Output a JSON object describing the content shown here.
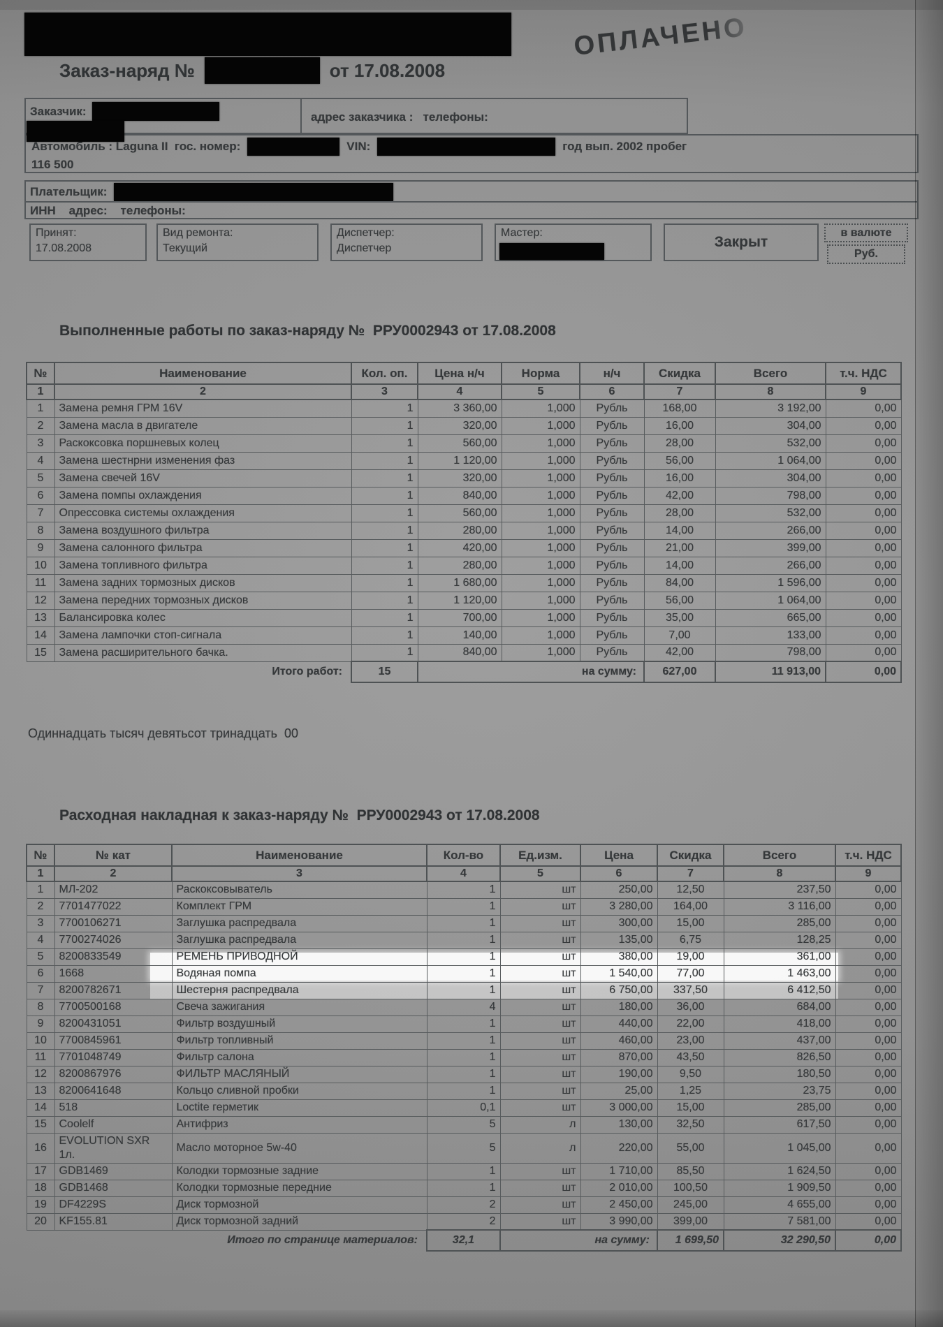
{
  "colors": {
    "paper": "#959595",
    "ink": "#35383a",
    "redaction": "#000000",
    "highlight": "#ffffff"
  },
  "stamp": "ОПЛАЧЕНО",
  "title": {
    "prefix": "Заказ-наряд №",
    "date": "от 17.08.2008"
  },
  "customer": {
    "label": "Заказчик:",
    "address_phones": "адрес заказчика :   телефоны:"
  },
  "vehicle": {
    "line": "Автомобиль : Laguna II  гос. номер:",
    "vin_label": "VIN:",
    "year": "год вып. 2002 пробег",
    "mileage": "116 500"
  },
  "payer": {
    "label": "Плательщик:",
    "inn_line": "ИНН    адрес:    телефоны:"
  },
  "status": {
    "accepted_label": "Принят:",
    "accepted_value": "17.08.2008",
    "repair_type_label": "Вид ремонта:",
    "repair_type_value": "Текущий",
    "dispatcher_label": "Диспетчер:",
    "dispatcher_value": "Диспетчер",
    "master_label": "Мастер:",
    "closed": "Закрыт",
    "currency_label": "в валюте",
    "currency_value": "Руб."
  },
  "works": {
    "title": "Выполненные работы по заказ-наряду №  РРУ0002943 от 17.08.2008",
    "headers": [
      "№",
      "Наименование",
      "Кол. оп.",
      "Цена н/ч",
      "Норма",
      "н/ч",
      "Скидка",
      "Всего",
      "т.ч. НДС"
    ],
    "col_numbers": [
      "1",
      "2",
      "3",
      "4",
      "5",
      "6",
      "7",
      "8",
      "9"
    ],
    "rows": [
      [
        "1",
        "Замена ремня ГРМ 16V",
        "1",
        "3 360,00",
        "1,000",
        "Рубль",
        "168,00",
        "3 192,00",
        "0,00"
      ],
      [
        "2",
        "Замена масла в двигателе",
        "1",
        "320,00",
        "1,000",
        "Рубль",
        "16,00",
        "304,00",
        "0,00"
      ],
      [
        "3",
        "Раскоксовка поршневых колец",
        "1",
        "560,00",
        "1,000",
        "Рубль",
        "28,00",
        "532,00",
        "0,00"
      ],
      [
        "4",
        "Замена шестнрни изменения фаз",
        "1",
        "1 120,00",
        "1,000",
        "Рубль",
        "56,00",
        "1 064,00",
        "0,00"
      ],
      [
        "5",
        "Замена свечей 16V",
        "1",
        "320,00",
        "1,000",
        "Рубль",
        "16,00",
        "304,00",
        "0,00"
      ],
      [
        "6",
        "Замена помпы охлаждения",
        "1",
        "840,00",
        "1,000",
        "Рубль",
        "42,00",
        "798,00",
        "0,00"
      ],
      [
        "7",
        "Опрессовка системы охлаждения",
        "1",
        "560,00",
        "1,000",
        "Рубль",
        "28,00",
        "532,00",
        "0,00"
      ],
      [
        "8",
        "Замена воздушного фильтра",
        "1",
        "280,00",
        "1,000",
        "Рубль",
        "14,00",
        "266,00",
        "0,00"
      ],
      [
        "9",
        "Замена салонного фильтра",
        "1",
        "420,00",
        "1,000",
        "Рубль",
        "21,00",
        "399,00",
        "0,00"
      ],
      [
        "10",
        "Замена топливного фильтра",
        "1",
        "280,00",
        "1,000",
        "Рубль",
        "14,00",
        "266,00",
        "0,00"
      ],
      [
        "11",
        "Замена задних тормозных дисков",
        "1",
        "1 680,00",
        "1,000",
        "Рубль",
        "84,00",
        "1 596,00",
        "0,00"
      ],
      [
        "12",
        "Замена передних тормозных дисков",
        "1",
        "1 120,00",
        "1,000",
        "Рубль",
        "56,00",
        "1 064,00",
        "0,00"
      ],
      [
        "13",
        "Балансировка колес",
        "1",
        "700,00",
        "1,000",
        "Рубль",
        "35,00",
        "665,00",
        "0,00"
      ],
      [
        "14",
        "Замена лампочки стоп-сигнала",
        "1",
        "140,00",
        "1,000",
        "Рубль",
        "7,00",
        "133,00",
        "0,00"
      ],
      [
        "15",
        "Замена расширительного бачка.",
        "1",
        "840,00",
        "1,000",
        "Рубль",
        "42,00",
        "798,00",
        "0,00"
      ]
    ],
    "total": {
      "label": "Итого работ:",
      "count": "15",
      "sum_label": "на сумму:",
      "discount": "627,00",
      "total": "11 913,00",
      "vat": "0,00"
    },
    "amount_in_words": "Одиннадцать тысяч девятьсот тринадцать  00"
  },
  "materials": {
    "title": "Расходная накладная к заказ-наряду №  РРУ0002943 от 17.08.2008",
    "headers": [
      "№",
      "№ кат",
      "Наименование",
      "Кол-во",
      "Ед.изм.",
      "Цена",
      "Скидка",
      "Всего",
      "т.ч. НДС"
    ],
    "col_numbers": [
      "1",
      "2",
      "3",
      "4",
      "5",
      "6",
      "7",
      "8",
      "9"
    ],
    "highlighted_row": 5,
    "rows": [
      [
        "1",
        "МЛ-202",
        "Раскоксовыватель",
        "1",
        "шт",
        "250,00",
        "12,50",
        "237,50",
        "0,00"
      ],
      [
        "2",
        "7701477022",
        "Комплект ГРМ",
        "1",
        "шт",
        "3 280,00",
        "164,00",
        "3 116,00",
        "0,00"
      ],
      [
        "3",
        "7700106271",
        "Заглушка распредвала",
        "1",
        "шт",
        "300,00",
        "15,00",
        "285,00",
        "0,00"
      ],
      [
        "4",
        "7700274026",
        "Заглушка распредвала",
        "1",
        "шт",
        "135,00",
        "6,75",
        "128,25",
        "0,00"
      ],
      [
        "5",
        "8200833549",
        "РЕМЕНЬ ПРИВОДНОЙ",
        "1",
        "шт",
        "380,00",
        "19,00",
        "361,00",
        "0,00"
      ],
      [
        "6",
        "1668",
        "Водяная помпа",
        "1",
        "шт",
        "1 540,00",
        "77,00",
        "1 463,00",
        "0,00"
      ],
      [
        "7",
        "8200782671",
        "Шестерня распредвала",
        "1",
        "шт",
        "6 750,00",
        "337,50",
        "6 412,50",
        "0,00"
      ],
      [
        "8",
        "7700500168",
        "Свеча зажигания",
        "4",
        "шт",
        "180,00",
        "36,00",
        "684,00",
        "0,00"
      ],
      [
        "9",
        "8200431051",
        "Фильтр воздушный",
        "1",
        "шт",
        "440,00",
        "22,00",
        "418,00",
        "0,00"
      ],
      [
        "10",
        "7700845961",
        "Фильтр топливный",
        "1",
        "шт",
        "460,00",
        "23,00",
        "437,00",
        "0,00"
      ],
      [
        "11",
        "7701048749",
        "Фильтр салона",
        "1",
        "шт",
        "870,00",
        "43,50",
        "826,50",
        "0,00"
      ],
      [
        "12",
        "8200867976",
        "ФИЛЬТР МАСЛЯНЫЙ",
        "1",
        "шт",
        "190,00",
        "9,50",
        "180,50",
        "0,00"
      ],
      [
        "13",
        "8200641648",
        "Кольцо сливной пробки",
        "1",
        "шт",
        "25,00",
        "1,25",
        "23,75",
        "0,00"
      ],
      [
        "14",
        "518",
        "Loctite герметик",
        "0,1",
        "шт",
        "3 000,00",
        "15,00",
        "285,00",
        "0,00"
      ],
      [
        "15",
        "Coolelf",
        "Антифриз",
        "5",
        "л",
        "130,00",
        "32,50",
        "617,50",
        "0,00"
      ],
      [
        "16",
        "EVOLUTION SXR 1л.",
        "Масло моторное 5w-40",
        "5",
        "л",
        "220,00",
        "55,00",
        "1 045,00",
        "0,00"
      ],
      [
        "17",
        "GDB1469",
        "Колодки тормозные задние",
        "1",
        "шт",
        "1 710,00",
        "85,50",
        "1 624,50",
        "0,00"
      ],
      [
        "18",
        "GDB1468",
        "Колодки тормозные передние",
        "1",
        "шт",
        "2 010,00",
        "100,50",
        "1 909,50",
        "0,00"
      ],
      [
        "19",
        "DF4229S",
        "Диск тормозной",
        "2",
        "шт",
        "2 450,00",
        "245,00",
        "4 655,00",
        "0,00"
      ],
      [
        "20",
        "KF155.81",
        "Диск тормозной задний",
        "2",
        "шт",
        "3 990,00",
        "399,00",
        "7 581,00",
        "0,00"
      ]
    ],
    "total": {
      "label": "Итого по странице материалов:",
      "qty": "32,1",
      "sum_label": "на сумму:",
      "discount": "1 699,50",
      "total": "32 290,50",
      "vat": "0,00"
    }
  }
}
